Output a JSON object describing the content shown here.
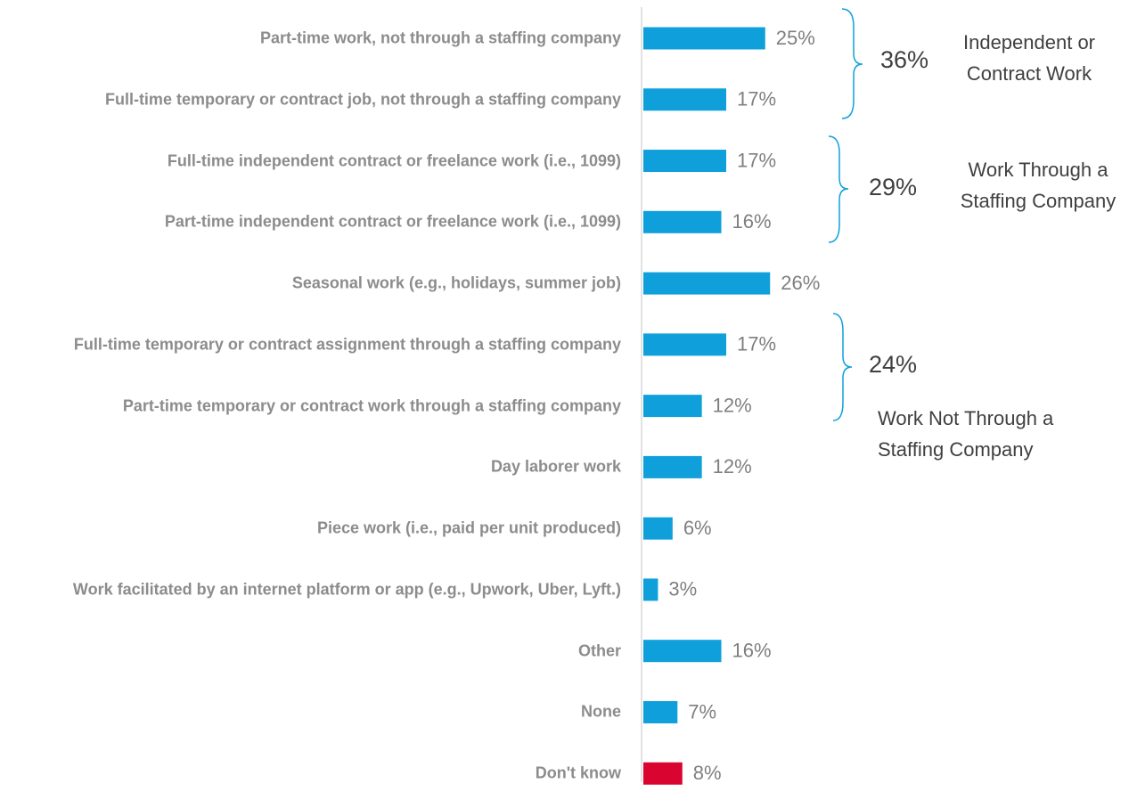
{
  "chart_data": {
    "type": "bar",
    "orientation": "horizontal",
    "categories": [
      "Part-time work, not through a staffing company",
      "Full-time temporary or contract job, not through a staffing company",
      "Full-time independent contract or freelance work (i.e., 1099)",
      "Part-time independent contract or freelance work (i.e., 1099)",
      "Seasonal work (e.g., holidays, summer job)",
      "Full-time temporary or contract assignment through a staffing company",
      "Part-time temporary or contract work through a staffing company",
      "Day laborer work",
      "Piece work (i.e., paid per unit produced)",
      "Work facilitated by an internet platform or app (e.g., Upwork, Uber, Lyft.)",
      "Other",
      "None",
      "Don't know"
    ],
    "values": [
      25,
      17,
      17,
      16,
      26,
      17,
      12,
      12,
      6,
      3,
      16,
      7,
      8
    ],
    "value_labels": [
      "25%",
      "17%",
      "17%",
      "16%",
      "26%",
      "17%",
      "12%",
      "12%",
      "6%",
      "3%",
      "16%",
      "7%",
      "8%"
    ],
    "colors": [
      "#0fa0db",
      "#0fa0db",
      "#0fa0db",
      "#0fa0db",
      "#0fa0db",
      "#0fa0db",
      "#0fa0db",
      "#0fa0db",
      "#0fa0db",
      "#0fa0db",
      "#0fa0db",
      "#0fa0db",
      "#d9042f"
    ],
    "annotations": [
      {
        "value_label": "36%",
        "text": "Independent or Contract Work"
      },
      {
        "value_label": "29%",
        "text": "Work Through a Staffing Company"
      },
      {
        "value_label": "24%",
        "text": "Work Not Through a Staffing Company"
      }
    ]
  }
}
